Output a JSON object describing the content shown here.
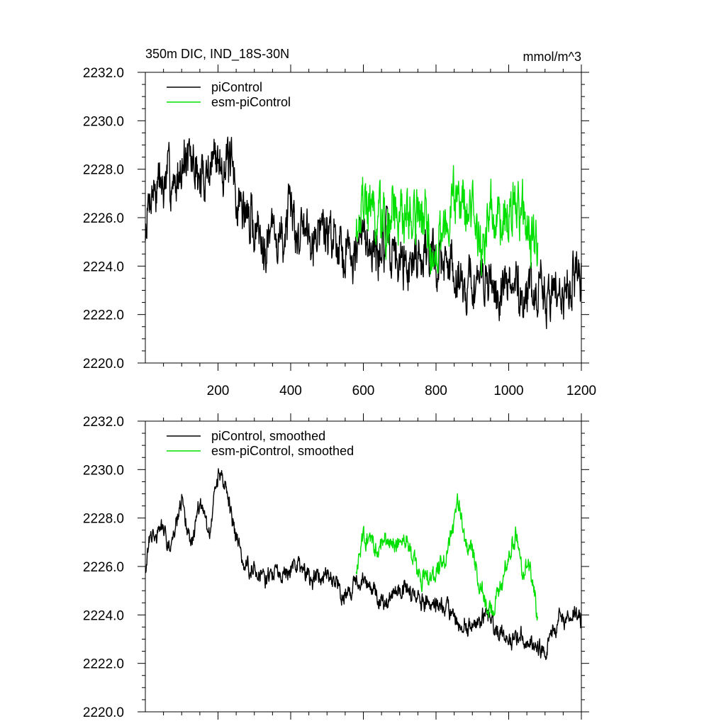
{
  "chart_data": [
    {
      "type": "line",
      "title": "350m DIC, IND_18S-30N",
      "units": "mmol/m^3",
      "xlim": [
        0,
        1200
      ],
      "ylim": [
        2220.0,
        2232.0
      ],
      "x_ticks": [
        200,
        400,
        600,
        800,
        1000,
        1200
      ],
      "y_ticks": [
        "2220.0",
        "2222.0",
        "2224.0",
        "2226.0",
        "2228.0",
        "2230.0",
        "2232.0"
      ],
      "legend_position": "top-left",
      "series": [
        {
          "name": "piControl",
          "color": "#000000",
          "x_start": 0,
          "x_end": 1200,
          "anchors": [
            [
              0,
              2225.2
            ],
            [
              20,
              2227.0
            ],
            [
              60,
              2227.3
            ],
            [
              100,
              2228.2
            ],
            [
              130,
              2228.0
            ],
            [
              160,
              2227.8
            ],
            [
              190,
              2228.6
            ],
            [
              210,
              2228.8
            ],
            [
              240,
              2227.8
            ],
            [
              260,
              2226.6
            ],
            [
              300,
              2225.7
            ],
            [
              350,
              2225.5
            ],
            [
              400,
              2225.4
            ],
            [
              440,
              2225.8
            ],
            [
              480,
              2225.6
            ],
            [
              520,
              2225.3
            ],
            [
              560,
              2225.0
            ],
            [
              600,
              2224.8
            ],
            [
              650,
              2224.9
            ],
            [
              700,
              2224.5
            ],
            [
              750,
              2224.6
            ],
            [
              800,
              2224.4
            ],
            [
              850,
              2223.8
            ],
            [
              900,
              2223.4
            ],
            [
              950,
              2223.2
            ],
            [
              1000,
              2223.3
            ],
            [
              1050,
              2222.8
            ],
            [
              1100,
              2222.8
            ],
            [
              1150,
              2223.5
            ],
            [
              1200,
              2223.6
            ]
          ],
          "noise_amplitude": 1.3,
          "seed": 7
        },
        {
          "name": "esm-piControl",
          "color": "#00e000",
          "x_start": 580,
          "x_end": 1080,
          "anchors": [
            [
              580,
              2226.0
            ],
            [
              620,
              2226.5
            ],
            [
              660,
              2225.8
            ],
            [
              700,
              2226.4
            ],
            [
              740,
              2226.6
            ],
            [
              780,
              2225.5
            ],
            [
              820,
              2225.6
            ],
            [
              860,
              2226.8
            ],
            [
              900,
              2226.4
            ],
            [
              940,
              2224.9
            ],
            [
              980,
              2225.8
            ],
            [
              1010,
              2227.0
            ],
            [
              1040,
              2225.9
            ],
            [
              1080,
              2224.8
            ]
          ],
          "noise_amplitude": 1.5,
          "seed": 19
        }
      ]
    },
    {
      "type": "line",
      "title": "",
      "xlim": [
        0,
        1200
      ],
      "ylim": [
        2220.0,
        2232.0
      ],
      "y_ticks": [
        "2220.0",
        "2222.0",
        "2224.0",
        "2226.0",
        "2228.0",
        "2230.0",
        "2232.0"
      ],
      "legend_position": "top-left",
      "series": [
        {
          "name": "piControl, smoothed",
          "color": "#000000",
          "x_start": 0,
          "x_end": 1200,
          "anchors": [
            [
              0,
              2226.0
            ],
            [
              15,
              2227.2
            ],
            [
              40,
              2227.4
            ],
            [
              70,
              2227.0
            ],
            [
              100,
              2228.6
            ],
            [
              125,
              2227.0
            ],
            [
              150,
              2228.8
            ],
            [
              175,
              2227.2
            ],
            [
              200,
              2229.9
            ],
            [
              220,
              2229.3
            ],
            [
              240,
              2228.0
            ],
            [
              260,
              2226.6
            ],
            [
              300,
              2225.9
            ],
            [
              340,
              2225.7
            ],
            [
              380,
              2225.8
            ],
            [
              420,
              2226.0
            ],
            [
              460,
              2225.5
            ],
            [
              500,
              2225.9
            ],
            [
              540,
              2225.0
            ],
            [
              580,
              2225.2
            ],
            [
              620,
              2225.0
            ],
            [
              660,
              2224.4
            ],
            [
              700,
              2225.1
            ],
            [
              740,
              2224.9
            ],
            [
              780,
              2224.4
            ],
            [
              820,
              2224.5
            ],
            [
              860,
              2223.6
            ],
            [
              900,
              2223.5
            ],
            [
              940,
              2223.9
            ],
            [
              980,
              2223.2
            ],
            [
              1020,
              2223.0
            ],
            [
              1060,
              2222.8
            ],
            [
              1100,
              2222.4
            ],
            [
              1140,
              2223.8
            ],
            [
              1180,
              2223.9
            ],
            [
              1200,
              2223.6
            ]
          ],
          "noise_amplitude": 0.45,
          "seed": 31
        },
        {
          "name": "esm-piControl, smoothed",
          "color": "#00e000",
          "x_start": 580,
          "x_end": 1080,
          "anchors": [
            [
              580,
              2226.0
            ],
            [
              600,
              2227.4
            ],
            [
              640,
              2226.7
            ],
            [
              680,
              2226.9
            ],
            [
              720,
              2227.2
            ],
            [
              760,
              2225.4
            ],
            [
              790,
              2225.6
            ],
            [
              820,
              2225.9
            ],
            [
              840,
              2227.0
            ],
            [
              860,
              2228.8
            ],
            [
              880,
              2227.0
            ],
            [
              900,
              2226.8
            ],
            [
              920,
              2225.2
            ],
            [
              945,
              2223.9
            ],
            [
              970,
              2225.0
            ],
            [
              1000,
              2226.5
            ],
            [
              1020,
              2227.6
            ],
            [
              1040,
              2225.5
            ],
            [
              1060,
              2226.0
            ],
            [
              1080,
              2224.2
            ]
          ],
          "noise_amplitude": 0.5,
          "seed": 43
        }
      ]
    }
  ]
}
